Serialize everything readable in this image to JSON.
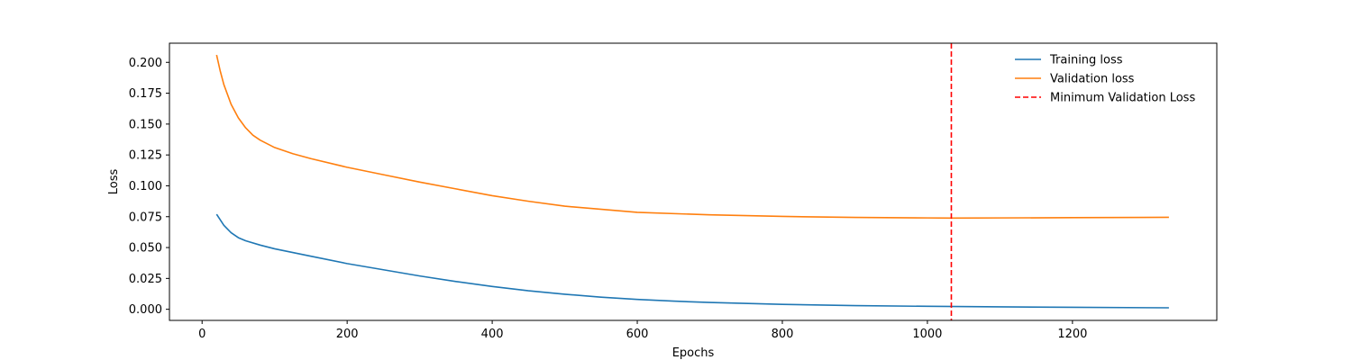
{
  "chart_data": {
    "type": "line",
    "title": "",
    "xlabel": "Epochs",
    "ylabel": "Loss",
    "xlim": [
      -45,
      1399
    ],
    "ylim": [
      -0.009,
      0.2155
    ],
    "xticks": [
      0,
      200,
      400,
      600,
      800,
      1000,
      1200
    ],
    "yticks": [
      0.0,
      0.025,
      0.05,
      0.075,
      0.1,
      0.125,
      0.15,
      0.175,
      0.2
    ],
    "xtick_labels": [
      "0",
      "200",
      "400",
      "600",
      "800",
      "1000",
      "1200"
    ],
    "ytick_labels": [
      "0.000",
      "0.025",
      "0.050",
      "0.075",
      "0.100",
      "0.125",
      "0.150",
      "0.175",
      "0.200"
    ],
    "grid": false,
    "legend_placement": "top-right",
    "series": [
      {
        "name": "Training loss",
        "color": "#1f77b4",
        "style": "solid",
        "x": [
          20,
          30,
          40,
          50,
          60,
          80,
          100,
          150,
          200,
          250,
          300,
          350,
          400,
          450,
          500,
          550,
          600,
          650,
          700,
          800,
          900,
          1000,
          1100,
          1200,
          1333
        ],
        "y": [
          0.077,
          0.068,
          0.062,
          0.058,
          0.0555,
          0.052,
          0.049,
          0.043,
          0.037,
          0.032,
          0.027,
          0.0225,
          0.0185,
          0.015,
          0.0122,
          0.0098,
          0.008,
          0.0066,
          0.0055,
          0.004,
          0.003,
          0.0024,
          0.002,
          0.0016,
          0.0012
        ]
      },
      {
        "name": "Validation loss",
        "color": "#ff7f0e",
        "style": "solid",
        "x": [
          20,
          25,
          30,
          40,
          50,
          60,
          70,
          80,
          100,
          125,
          150,
          200,
          250,
          300,
          350,
          400,
          450,
          500,
          600,
          700,
          800,
          900,
          1000,
          1033,
          1100,
          1200,
          1333
        ],
        "y": [
          0.206,
          0.193,
          0.182,
          0.166,
          0.155,
          0.147,
          0.141,
          0.137,
          0.131,
          0.126,
          0.122,
          0.115,
          0.109,
          0.103,
          0.0975,
          0.092,
          0.0875,
          0.0835,
          0.0785,
          0.0765,
          0.0752,
          0.0744,
          0.074,
          0.0739,
          0.074,
          0.0742,
          0.0745
        ]
      }
    ],
    "vlines": [
      {
        "name": "Minimum Validation Loss",
        "x": 1033,
        "color": "#ff0000",
        "style": "dashed"
      }
    ]
  }
}
